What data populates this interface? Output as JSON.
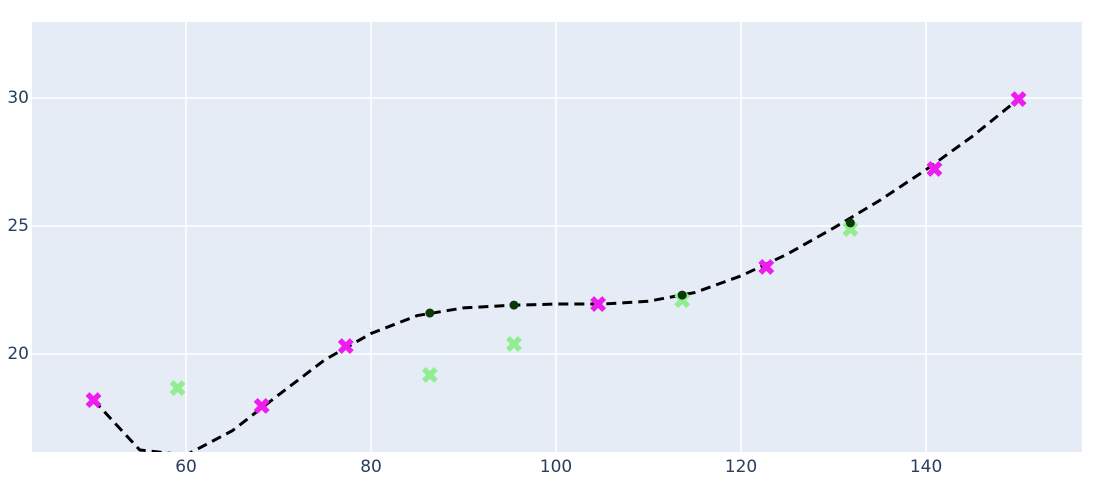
{
  "chart_data": {
    "type": "scatter",
    "xlim": [
      43.35,
      156.86
    ],
    "ylim": [
      16.17,
      32.97
    ],
    "xticks": [
      60,
      80,
      100,
      120,
      140
    ],
    "yticks": [
      20,
      25,
      30
    ],
    "grid": true,
    "series": [
      {
        "mode": "lines",
        "dash": true,
        "color": "#000000",
        "x": [
          50,
          55,
          60,
          65,
          70,
          75,
          80,
          85,
          90,
          95,
          100,
          105,
          110,
          115,
          120,
          125,
          130,
          135,
          140,
          145,
          150
        ],
        "values": [
          18.2,
          16.25,
          16.05,
          17.0,
          18.4,
          19.77,
          20.8,
          21.5,
          21.8,
          21.9,
          21.95,
          21.95,
          22.06,
          22.4,
          23.05,
          23.9,
          24.92,
          26.0,
          27.2,
          28.5,
          29.96
        ]
      },
      {
        "mode": "markers",
        "marker": "x",
        "color": "#ee1cee",
        "x": [
          50,
          68.18,
          77.27,
          104.55,
          122.73,
          140.91,
          150
        ],
        "values": [
          18.2,
          17.97,
          20.31,
          21.95,
          23.4,
          27.23,
          29.96
        ]
      },
      {
        "mode": "markers",
        "marker": "x",
        "color": "#90ee90",
        "x": [
          59.09,
          86.36,
          95.45,
          113.64,
          131.82
        ],
        "values": [
          18.67,
          19.18,
          20.39,
          22.1,
          24.88
        ]
      },
      {
        "mode": "markers",
        "marker": "circle",
        "color": "#0a3a0a",
        "x": [
          86.36,
          95.45,
          113.64,
          131.82
        ],
        "values": [
          21.6,
          21.91,
          22.3,
          25.12
        ]
      }
    ]
  }
}
